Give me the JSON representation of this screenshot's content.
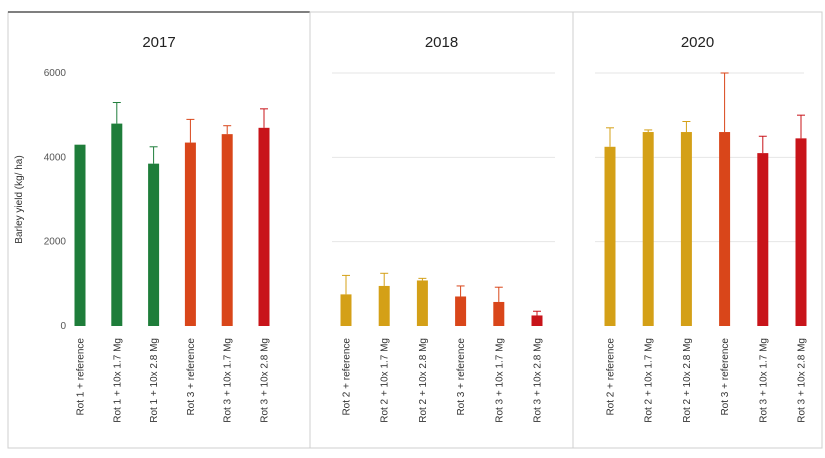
{
  "chart_data": [
    {
      "type": "bar",
      "title": "2017",
      "ylabel": "Barley yield (kg/ ha)",
      "ylim": [
        0,
        6000
      ],
      "yticks": [
        0,
        2000,
        4000,
        6000
      ],
      "categories": [
        "Rot 1 + reference",
        "Rot 1 + 10x 1.7 Mg",
        "Rot 1 + 10x 2.8 Mg",
        "Rot 3 + reference",
        "Rot 3 + 10x 1.7 Mg",
        "Rot 3 + 10x 2.8 Mg"
      ],
      "values": [
        4300,
        4800,
        3850,
        4350,
        4550,
        4700
      ],
      "errors": [
        0,
        500,
        400,
        550,
        200,
        450
      ],
      "colors": [
        "#1e7d3a",
        "#1e7d3a",
        "#1e7d3a",
        "#d9461a",
        "#d9461a",
        "#c8141a"
      ],
      "grid": false
    },
    {
      "type": "bar",
      "title": "2018",
      "ylim": [
        0,
        6000
      ],
      "categories": [
        "Rot 2 + reference",
        "Rot 2 + 10x 1.7 Mg",
        "Rot 2 + 10x 2.8 Mg",
        "Rot 3 + reference",
        "Rot 3 + 10x 1.7 Mg",
        "Rot 3 + 10x 2.8 Mg"
      ],
      "values": [
        750,
        950,
        1080,
        700,
        570,
        250
      ],
      "errors": [
        450,
        300,
        50,
        250,
        350,
        100
      ],
      "colors": [
        "#d4a017",
        "#d4a017",
        "#d4a017",
        "#d9461a",
        "#d9461a",
        "#c8141a"
      ],
      "grid": true
    },
    {
      "type": "bar",
      "title": "2020",
      "ylim": [
        0,
        6000
      ],
      "categories": [
        "Rot 2 + reference",
        "Rot 2 + 10x 1.7 Mg",
        "Rot 2 + 10x 2.8 Mg",
        "Rot 3 + reference",
        "Rot 3 + 10x 1.7 Mg",
        "Rot 3 + 10x 2.8 Mg"
      ],
      "values": [
        4250,
        4600,
        4600,
        4600,
        4100,
        4450
      ],
      "errors": [
        450,
        50,
        250,
        1400,
        400,
        550
      ],
      "colors": [
        "#d4a017",
        "#d4a017",
        "#d4a017",
        "#d9461a",
        "#c8141a",
        "#c8141a"
      ],
      "grid": true
    }
  ]
}
